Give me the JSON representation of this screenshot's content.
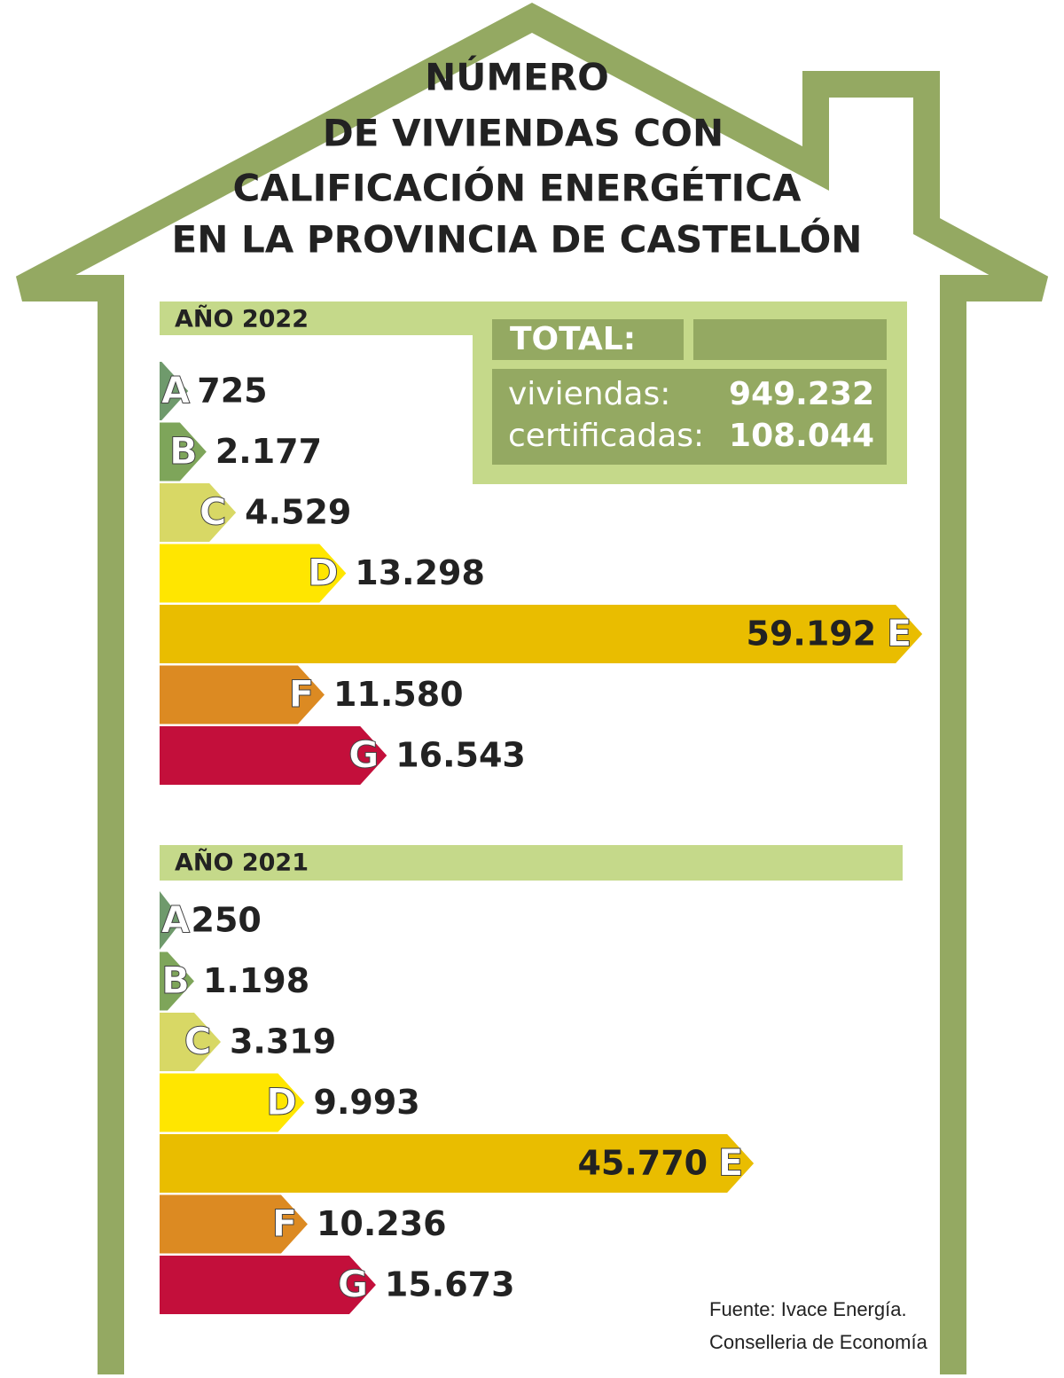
{
  "title": [
    "NÚMERO",
    "DE VIVIENDAS CON",
    "CALIFICACIÓN ENERGÉTICA",
    "EN LA PROVINCIA DE CASTELLÓN"
  ],
  "chart_data": [
    {
      "type": "bar",
      "title": "AÑO 2022",
      "categories": [
        "A",
        "B",
        "C",
        "D",
        "E",
        "F",
        "G"
      ],
      "values": [
        725,
        2177,
        4529,
        13298,
        59192,
        11580,
        16543
      ],
      "value_labels": [
        "725",
        "2.177",
        "4.529",
        "13.298",
        "59.192",
        "11.580",
        "16.543"
      ],
      "colors": [
        "#6f9a6c",
        "#7ea55a",
        "#d8d865",
        "#ffe600",
        "#e9bd00",
        "#dc8a22",
        "#c30f3b"
      ]
    },
    {
      "type": "bar",
      "title": "AÑO 2021",
      "categories": [
        "A",
        "B",
        "C",
        "D",
        "E",
        "F",
        "G"
      ],
      "values": [
        250,
        1198,
        3319,
        9993,
        45770,
        10236,
        15673
      ],
      "value_labels": [
        "250",
        "1.198",
        "3.319",
        "9.993",
        "45.770",
        "10.236",
        "15.673"
      ],
      "colors": [
        "#6f9a6c",
        "#7ea55a",
        "#d8d865",
        "#ffe600",
        "#e9bd00",
        "#dc8a22",
        "#c30f3b"
      ]
    }
  ],
  "summary": {
    "title": "TOTAL:",
    "rows": [
      [
        "viviendas:",
        "949.232"
      ],
      [
        "certificadas:",
        "108.044"
      ]
    ]
  },
  "source": [
    "Fuente: Ivace Energía.",
    "Conselleria de Economía"
  ]
}
